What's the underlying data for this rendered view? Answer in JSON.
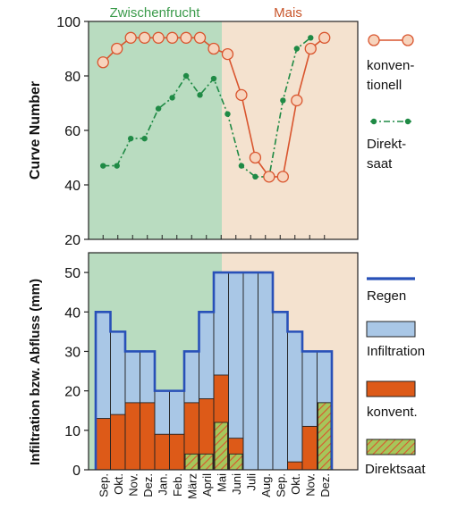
{
  "top_panel": {
    "zone_labels": {
      "left": "Zwischenfrucht",
      "right": "Mais"
    },
    "ylabel": "Curve Number",
    "yticks": [
      "20",
      "40",
      "60",
      "80",
      "100"
    ]
  },
  "bottom_panel": {
    "ylabel": "Infiltration bzw. Abfluss (mm)",
    "yticks": [
      "0",
      "10",
      "20",
      "30",
      "40",
      "50"
    ]
  },
  "months": [
    "Sep.",
    "Okt.",
    "Nov.",
    "Dez.",
    "Jan.",
    "Feb.",
    "März",
    "April",
    "Mai",
    "Juni",
    "Juli",
    "Aug.",
    "Sep.",
    "Okt.",
    "Nov.",
    "Dez."
  ],
  "legend_top": {
    "konventionell": [
      "konven-",
      "tionell"
    ],
    "direktsaat": [
      "Direkt-",
      "saat"
    ]
  },
  "legend_bottom": {
    "regen": "Regen",
    "infiltration": "Infiltration",
    "konvent": "konvent.",
    "direktsaat": "Direktsaat"
  },
  "colors": {
    "zwischenfrucht_bg": "#b9dcc0",
    "mais_bg": "#f4e2cf",
    "zwischenfrucht_text": "#3a9a4a",
    "mais_text": "#c8552a",
    "konventionell": "#d9552e",
    "konventionell_marker": "#f7d4bd",
    "direktsaat": "#1f8a45",
    "regen": "#2850b8",
    "infiltration": "#a9c7e6",
    "konvent_bar": "#dd5a18",
    "direktsaat_bar": "#a6c65a"
  },
  "chart_data": [
    {
      "type": "line",
      "ylabel": "Curve Number",
      "ylim": [
        20,
        100
      ],
      "x": [
        1,
        1.5,
        2,
        2.5,
        3,
        3.5,
        4,
        4.5,
        5,
        5.5,
        6,
        6.5,
        7,
        7.5,
        8,
        8.5,
        9,
        9.5,
        10,
        10.5,
        11,
        11.5,
        12,
        12.5,
        13,
        13.5,
        14,
        14.5,
        15,
        15.5,
        16
      ],
      "series": [
        {
          "name": "konventionell",
          "points": [
            [
              1,
              85
            ],
            [
              1.5,
              90
            ],
            [
              2,
              94
            ],
            [
              2.5,
              94
            ],
            [
              3,
              94
            ],
            [
              3.5,
              94
            ],
            [
              4,
              94
            ],
            [
              4.5,
              94
            ],
            [
              5,
              90
            ],
            [
              5.5,
              88
            ],
            [
              6,
              73
            ],
            [
              6.5,
              50
            ],
            [
              7,
              43
            ],
            [
              7.5,
              43
            ],
            [
              8,
              71
            ],
            [
              8.5,
              90
            ],
            [
              9,
              94
            ]
          ]
        },
        {
          "name": "Direktsaat",
          "points": [
            [
              1,
              47
            ],
            [
              1.5,
              47
            ],
            [
              2,
              57
            ],
            [
              2.5,
              57
            ],
            [
              3,
              68
            ],
            [
              3.5,
              72
            ],
            [
              4,
              80
            ],
            [
              4.5,
              73
            ],
            [
              5,
              79
            ],
            [
              5.5,
              66
            ],
            [
              6,
              47
            ],
            [
              6.5,
              43
            ],
            [
              7,
              43
            ],
            [
              7.5,
              71
            ],
            [
              8,
              90
            ],
            [
              8.5,
              94
            ]
          ]
        }
      ]
    },
    {
      "type": "bar",
      "ylabel": "Infiltration bzw. Abfluss (mm)",
      "ylim": [
        0,
        55
      ],
      "categories": [
        "Sep.",
        "Okt.",
        "Nov.",
        "Dez.",
        "Jan.",
        "Feb.",
        "März",
        "April",
        "Mai",
        "Juni",
        "Juli",
        "Aug.",
        "Sep.",
        "Okt.",
        "Nov.",
        "Dez."
      ],
      "series": [
        {
          "name": "Regen",
          "values": [
            40,
            35,
            30,
            30,
            20,
            20,
            30,
            40,
            50,
            50,
            50,
            50,
            40,
            35,
            30,
            30
          ]
        },
        {
          "name": "konvent.",
          "values": [
            13,
            14,
            17,
            17,
            9,
            9,
            17,
            18,
            24,
            8,
            0,
            0,
            0,
            2,
            11,
            17
          ]
        },
        {
          "name": "Direktsaat",
          "values": [
            0,
            0,
            0,
            0,
            0,
            0,
            4,
            4,
            12,
            4,
            0,
            0,
            0,
            0,
            0,
            17
          ]
        }
      ]
    }
  ]
}
